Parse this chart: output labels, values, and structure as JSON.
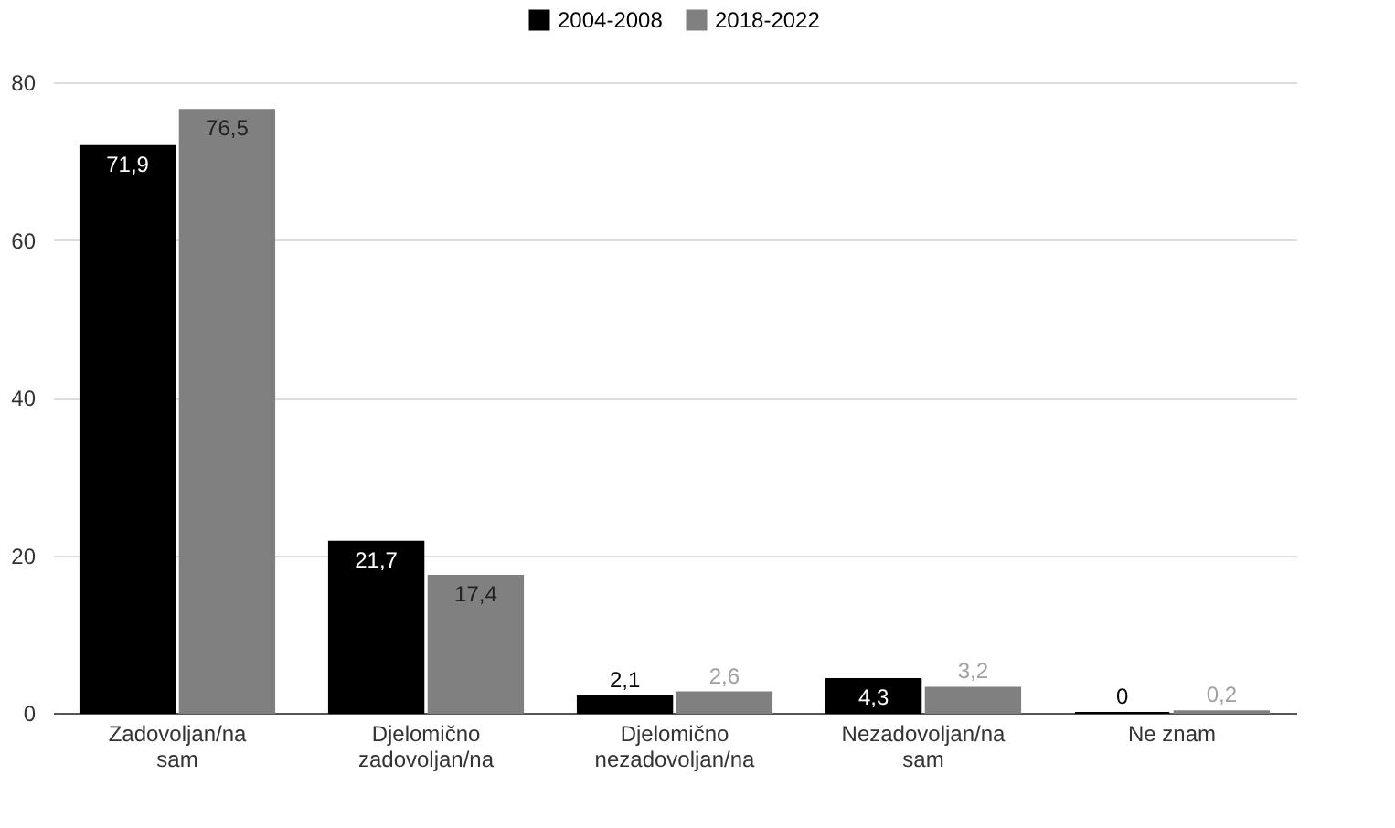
{
  "chart_data": {
    "type": "bar",
    "categories": [
      "Zadovoljan/na\nsam",
      "Djelomično\nzadovoljan/na",
      "Djelomično\nnezadovoljan/na",
      "Nezadovoljan/na\nsam",
      "Ne znam"
    ],
    "series": [
      {
        "name": "2004-2008",
        "color": "#000000",
        "values": [
          71.9,
          21.7,
          2.1,
          4.3,
          0
        ],
        "value_labels": [
          "71,9",
          "21,7",
          "2,1",
          "4,3",
          "0"
        ]
      },
      {
        "name": "2018-2022",
        "color": "#808080",
        "values": [
          76.5,
          17.4,
          2.6,
          3.2,
          0.2
        ],
        "value_labels": [
          "76,5",
          "17,4",
          "2,6",
          "3,2",
          "0,2"
        ]
      }
    ],
    "ylim": [
      0,
      80
    ],
    "yticks": [
      0,
      20,
      40,
      60,
      80
    ],
    "grid": "y",
    "legend": "top"
  }
}
